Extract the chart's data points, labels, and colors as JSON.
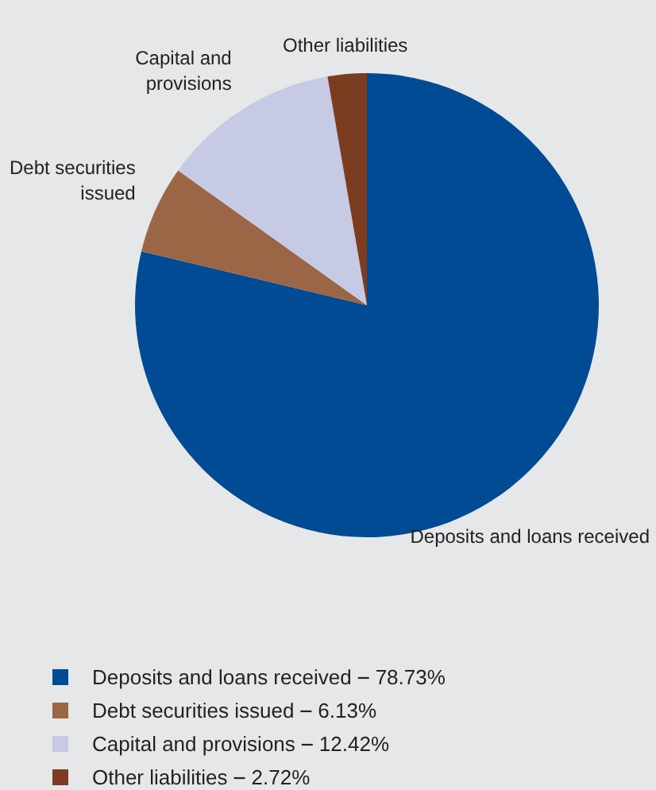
{
  "chart_data": {
    "type": "pie",
    "categories": [
      "Deposits and loans received",
      "Debt securities issued",
      "Capital and provisions",
      "Other liabilities"
    ],
    "values": [
      78.73,
      6.13,
      12.42,
      2.72
    ],
    "colors": [
      "#004b93",
      "#9a6646",
      "#c6cae4",
      "#7c3c20"
    ],
    "value_labels": [
      "78.73%",
      "6.13%",
      "12.42%",
      "2.72%"
    ],
    "legend": "bottom left"
  }
}
